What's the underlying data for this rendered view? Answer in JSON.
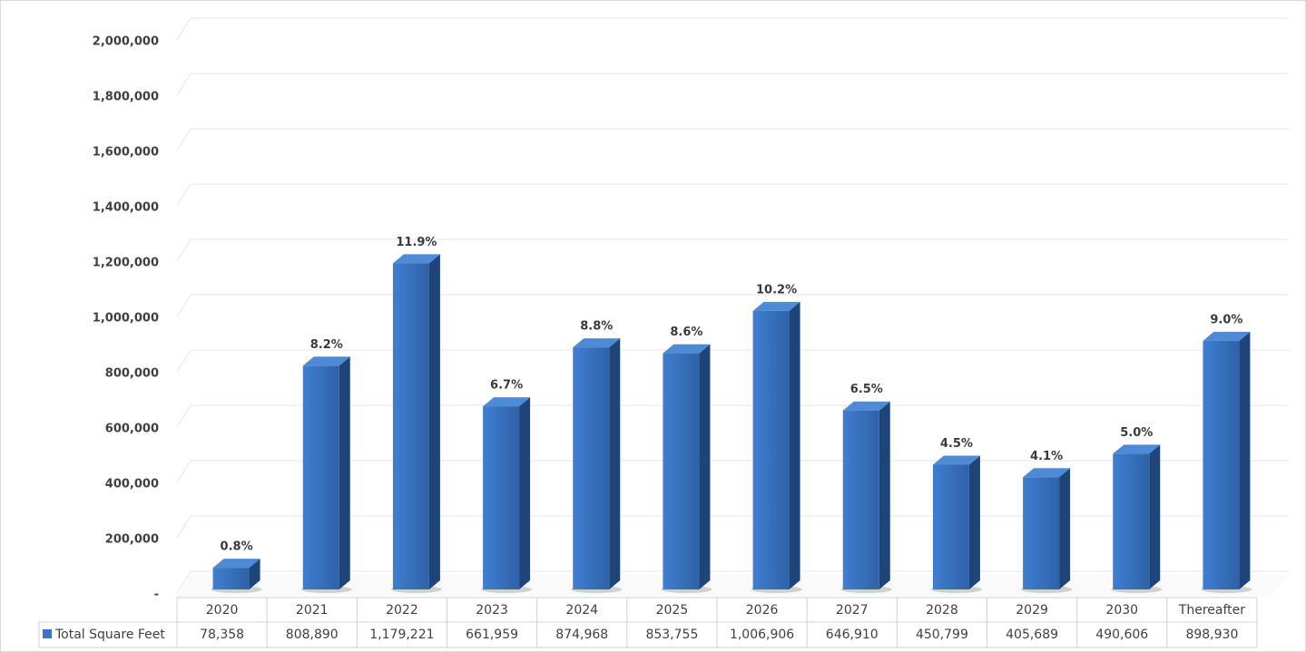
{
  "chart_data": {
    "type": "bar3d",
    "categories": [
      "2020",
      "2021",
      "2022",
      "2023",
      "2024",
      "2025",
      "2026",
      "2027",
      "2028",
      "2029",
      "2030",
      "Thereafter"
    ],
    "series": [
      {
        "name": "Total Square Feet",
        "color": "#3a75c4",
        "values": [
          78358,
          808890,
          1179221,
          661959,
          874968,
          853755,
          1006906,
          646910,
          450799,
          405689,
          490606,
          898930
        ],
        "value_labels": [
          "78,358",
          "808,890",
          "1,179,221",
          "661,959",
          "874,968",
          "853,755",
          "1,006,906",
          "646,910",
          "450,799",
          "405,689",
          "490,606",
          "898,930"
        ],
        "percent_labels": [
          "0.8%",
          "8.2%",
          "11.9%",
          "6.7%",
          "8.8%",
          "8.6%",
          "10.2%",
          "6.5%",
          "4.5%",
          "4.1%",
          "5.0%",
          "9.0%"
        ]
      }
    ],
    "ylim": [
      0,
      2000000
    ],
    "yticks": [
      {
        "value": 0,
        "label": "-"
      },
      {
        "value": 200000,
        "label": "200,000"
      },
      {
        "value": 400000,
        "label": "400,000"
      },
      {
        "value": 600000,
        "label": "600,000"
      },
      {
        "value": 800000,
        "label": "800,000"
      },
      {
        "value": 1000000,
        "label": "1,000,000"
      },
      {
        "value": 1200000,
        "label": "1,200,000"
      },
      {
        "value": 1400000,
        "label": "1,400,000"
      },
      {
        "value": 1600000,
        "label": "1,600,000"
      },
      {
        "value": 1800000,
        "label": "1,800,000"
      },
      {
        "value": 2000000,
        "label": "2,000,000"
      }
    ],
    "grid": true,
    "data_table": true
  }
}
